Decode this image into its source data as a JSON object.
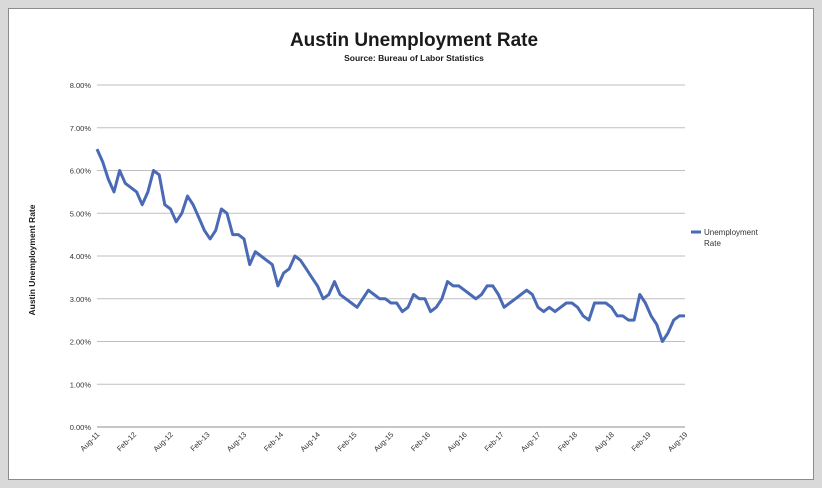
{
  "chart_data": {
    "type": "line",
    "title": "Austin Unemployment Rate",
    "subtitle": "Source: Bureau of Labor Statistics",
    "xlabel": "",
    "ylabel": "Austin Unemployment Rate",
    "ylim": [
      0,
      8
    ],
    "y_ticks": [
      "0.00%",
      "1.00%",
      "2.00%",
      "3.00%",
      "4.00%",
      "5.00%",
      "6.00%",
      "7.00%",
      "8.00%"
    ],
    "x_ticks": [
      "Aug-11",
      "Feb-12",
      "Aug-12",
      "Feb-13",
      "Aug-13",
      "Feb-14",
      "Aug-14",
      "Feb-15",
      "Aug-15",
      "Feb-16",
      "Aug-16",
      "Feb-17",
      "Aug-17",
      "Feb-18",
      "Aug-18",
      "Feb-19",
      "Aug-19"
    ],
    "grid": "horizontal",
    "legend_position": "right",
    "series": [
      {
        "name": "Unemployment Rate",
        "color": "#4a6ab5",
        "values": [
          6.5,
          6.2,
          5.8,
          5.5,
          6.0,
          5.7,
          5.6,
          5.5,
          5.2,
          5.5,
          6.0,
          5.9,
          5.2,
          5.1,
          4.8,
          5.0,
          5.4,
          5.2,
          4.9,
          4.6,
          4.4,
          4.6,
          5.1,
          5.0,
          4.5,
          4.5,
          4.4,
          3.8,
          4.1,
          4.0,
          3.9,
          3.8,
          3.3,
          3.6,
          3.7,
          4.0,
          3.9,
          3.7,
          3.5,
          3.3,
          3.0,
          3.1,
          3.4,
          3.1,
          3.0,
          2.9,
          2.8,
          3.0,
          3.2,
          3.1,
          3.0,
          3.0,
          2.9,
          2.9,
          2.7,
          2.8,
          3.1,
          3.0,
          3.0,
          2.7,
          2.8,
          3.0,
          3.4,
          3.3,
          3.3,
          3.2,
          3.1,
          3.0,
          3.1,
          3.3,
          3.3,
          3.1,
          2.8,
          2.9,
          3.0,
          3.1,
          3.2,
          3.1,
          2.8,
          2.7,
          2.8,
          2.7,
          2.8,
          2.9,
          2.9,
          2.8,
          2.6,
          2.5,
          2.9,
          2.9,
          2.9,
          2.8,
          2.6,
          2.6,
          2.5,
          2.5,
          3.1,
          2.9,
          2.6,
          2.4,
          2.0,
          2.2,
          2.5,
          2.6,
          2.6
        ]
      }
    ]
  }
}
